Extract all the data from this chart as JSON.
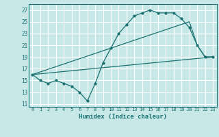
{
  "xlabel": "Humidex (Indice chaleur)",
  "bg_color": "#c8e8e8",
  "grid_color": "#ffffff",
  "line_color": "#1a7070",
  "xlim": [
    -0.5,
    23.5
  ],
  "ylim": [
    10.5,
    28.0
  ],
  "xticks": [
    0,
    1,
    2,
    3,
    4,
    5,
    6,
    7,
    8,
    9,
    10,
    11,
    12,
    13,
    14,
    15,
    16,
    17,
    18,
    19,
    20,
    21,
    22,
    23
  ],
  "yticks": [
    11,
    13,
    15,
    17,
    19,
    21,
    23,
    25,
    27
  ],
  "line1_x": [
    0,
    1,
    2,
    3,
    4,
    5,
    6,
    7,
    8,
    9,
    10,
    11,
    12,
    13,
    14,
    15,
    16,
    17,
    18,
    19,
    20,
    21,
    22,
    23
  ],
  "line1_y": [
    16.0,
    15.0,
    14.5,
    15.0,
    14.5,
    14.0,
    13.0,
    11.5,
    14.5,
    18.0,
    20.5,
    23.0,
    24.5,
    26.0,
    26.5,
    27.0,
    26.5,
    26.5,
    26.5,
    25.5,
    24.0,
    21.0,
    19.0,
    19.0
  ],
  "line2_x": [
    0,
    23
  ],
  "line2_y": [
    16.0,
    19.0
  ],
  "line3_x": [
    0,
    20,
    21,
    22,
    23
  ],
  "line3_y": [
    16.0,
    25.0,
    21.0,
    19.0,
    19.0
  ]
}
